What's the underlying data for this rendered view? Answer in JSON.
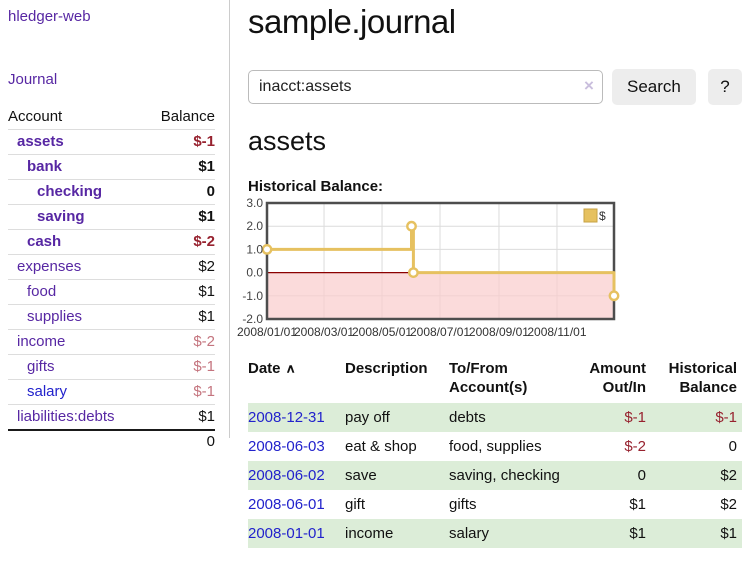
{
  "colors": {
    "link_purple": "#5727a3",
    "link_blue": "#2222cc",
    "negative_strong": "#97222f",
    "negative_light": "#c4747e",
    "row_green": "#dcedd8",
    "chart_line_gold": "#e6c160",
    "chart_negative_fill": "#f9cdcd",
    "chart_zero_line": "#8b0000",
    "chart_frame": "#4d4d4d",
    "chart_grid": "#dcdcdc"
  },
  "sidebar": {
    "app_title": "hledger-web",
    "journal_label": "Journal",
    "columns": {
      "account": "Account",
      "balance": "Balance"
    },
    "accounts": [
      {
        "name": "assets",
        "balance": "$-1",
        "indent": 1,
        "bold": true,
        "link_color": "purple",
        "balance_style": "neg-strong"
      },
      {
        "name": "bank",
        "balance": "$1",
        "indent": 2,
        "bold": true,
        "link_color": "purple",
        "balance_style": "normal"
      },
      {
        "name": "checking",
        "balance": "0",
        "indent": 3,
        "bold": true,
        "link_color": "purple",
        "balance_style": "normal"
      },
      {
        "name": "saving",
        "balance": "$1",
        "indent": 3,
        "bold": true,
        "link_color": "purple",
        "balance_style": "normal"
      },
      {
        "name": "cash",
        "balance": "$-2",
        "indent": 2,
        "bold": true,
        "link_color": "purple",
        "balance_style": "neg-strong"
      },
      {
        "name": "expenses",
        "balance": "$2",
        "indent": 1,
        "bold": false,
        "link_color": "purple",
        "balance_style": "normal"
      },
      {
        "name": "food",
        "balance": "$1",
        "indent": 2,
        "bold": false,
        "link_color": "purple",
        "balance_style": "normal"
      },
      {
        "name": "supplies",
        "balance": "$1",
        "indent": 2,
        "bold": false,
        "link_color": "purple",
        "balance_style": "normal"
      },
      {
        "name": "income",
        "balance": "$-2",
        "indent": 1,
        "bold": false,
        "link_color": "purple",
        "balance_style": "neg-light"
      },
      {
        "name": "gifts",
        "balance": "$-1",
        "indent": 2,
        "bold": false,
        "link_color": "purple",
        "balance_style": "neg-light"
      },
      {
        "name": "salary",
        "balance": "$-1",
        "indent": 2,
        "bold": false,
        "link_color": "blue",
        "balance_style": "neg-light"
      },
      {
        "name": "liabilities:debts",
        "balance": "$1",
        "indent": 1,
        "bold": false,
        "link_color": "purple",
        "balance_style": "normal"
      }
    ],
    "total": "0"
  },
  "main": {
    "title": "sample.journal",
    "search": {
      "value": "inacct:assets",
      "clear_icon": "×",
      "button_label": "Search",
      "help_label": "?"
    },
    "account_heading": "assets",
    "chart_label": "Historical Balance:"
  },
  "chart_data": {
    "type": "line",
    "step": true,
    "series": [
      {
        "name": "$",
        "points": [
          {
            "date": "2008-01-01",
            "day": 0,
            "value": 1
          },
          {
            "date": "2008-06-01",
            "day": 152,
            "value": 2
          },
          {
            "date": "2008-06-03",
            "day": 154,
            "value": 0
          },
          {
            "date": "2008-12-31",
            "day": 365,
            "value": -1
          }
        ]
      }
    ],
    "x_domain_days": [
      0,
      365
    ],
    "x_ticks": [
      {
        "day": 0,
        "label": "2008/01/01"
      },
      {
        "day": 60,
        "label": "2008/03/01"
      },
      {
        "day": 121,
        "label": "2008/05/01"
      },
      {
        "day": 182,
        "label": "2008/07/01"
      },
      {
        "day": 244,
        "label": "2008/09/01"
      },
      {
        "day": 305,
        "label": "2008/11/01"
      }
    ],
    "y_ticks": [
      3.0,
      2.0,
      1.0,
      0.0,
      -1.0,
      -2.0
    ],
    "ylim": [
      -2,
      3
    ],
    "grid": true,
    "negative_region_shaded": true,
    "legend_position": "top-right",
    "legend_label": "$"
  },
  "register": {
    "columns": [
      {
        "label": "Date",
        "sort_icon": "∧"
      },
      {
        "label": "Description"
      },
      {
        "label": "To/From\nAccount(s)"
      },
      {
        "label": "Amount\nOut/In"
      },
      {
        "label": "Historical\nBalance"
      }
    ],
    "rows": [
      {
        "date": "2008-12-31",
        "description": "pay off",
        "accounts": "debts",
        "amount": "$-1",
        "amount_negative": true,
        "balance": "$-1",
        "balance_negative": true,
        "shaded": true
      },
      {
        "date": "2008-06-03",
        "description": "eat & shop",
        "accounts": "food, supplies",
        "amount": "$-2",
        "amount_negative": true,
        "balance": "0",
        "balance_negative": false,
        "shaded": false
      },
      {
        "date": "2008-06-02",
        "description": "save",
        "accounts": "saving, checking",
        "amount": "0",
        "amount_negative": false,
        "balance": "$2",
        "balance_negative": false,
        "shaded": true
      },
      {
        "date": "2008-06-01",
        "description": "gift",
        "accounts": "gifts",
        "amount": "$1",
        "amount_negative": false,
        "balance": "$2",
        "balance_negative": false,
        "shaded": false
      },
      {
        "date": "2008-01-01",
        "description": "income",
        "accounts": "salary",
        "amount": "$1",
        "amount_negative": false,
        "balance": "$1",
        "balance_negative": false,
        "shaded": true
      }
    ]
  }
}
